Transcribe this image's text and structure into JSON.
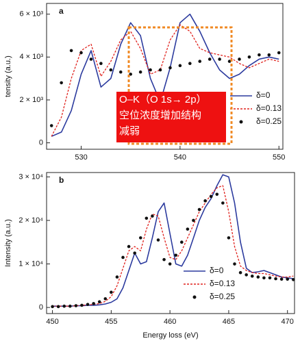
{
  "chart_data": [
    {
      "type": "line",
      "panel": "a",
      "ylabel": "tensity (a.u.)",
      "x": [
        527,
        528,
        529,
        530,
        531,
        532,
        533,
        534,
        535,
        536,
        537,
        538,
        539,
        540,
        541,
        542,
        543,
        544,
        545,
        546,
        547,
        548,
        549,
        550
      ],
      "xlim": [
        526.5,
        550.4
      ],
      "xticks": [
        530,
        540,
        550
      ],
      "ylim": [
        -300,
        6500
      ],
      "yticks": [
        0,
        {
          "value": 2000,
          "label": "2 × 10³"
        },
        {
          "value": 4000,
          "label": "4 × 10³"
        },
        {
          "value": 6000,
          "label": "6 × 10³"
        }
      ],
      "series": [
        {
          "name": "δ=0",
          "color": "#2b3a9e",
          "style": "solid",
          "values": [
            300,
            500,
            1500,
            3200,
            4300,
            2600,
            3000,
            4600,
            5600,
            5000,
            3000,
            1900,
            3500,
            5600,
            6000,
            5200,
            4200,
            3400,
            3000,
            3200,
            3600,
            3900,
            4000,
            3900
          ]
        },
        {
          "name": "δ=0.13",
          "color": "#e0201b",
          "style": "dashed",
          "values": [
            300,
            1200,
            3000,
            4300,
            4600,
            3100,
            3800,
            4800,
            5200,
            4400,
            3200,
            3400,
            4800,
            5500,
            5200,
            4400,
            4200,
            4100,
            4000,
            3700,
            3500,
            3700,
            3900,
            3800
          ]
        },
        {
          "name": "δ=0.25",
          "color": "#111111",
          "style": "dots",
          "values": [
            800,
            2800,
            4300,
            4200,
            3900,
            3700,
            3400,
            3300,
            3200,
            3300,
            3400,
            3400,
            3500,
            3600,
            3700,
            3800,
            3900,
            3900,
            3800,
            3900,
            4000,
            4100,
            4100,
            4200
          ]
        }
      ]
    },
    {
      "type": "line",
      "panel": "b",
      "xlabel": "Energy loss (eV)",
      "ylabel": "Intensity (a.u.)",
      "x": [
        450,
        450.5,
        451,
        451.5,
        452,
        452.5,
        453,
        453.5,
        454,
        454.5,
        455,
        455.5,
        456,
        456.5,
        457,
        457.5,
        458,
        458.5,
        459,
        459.5,
        460,
        460.5,
        461,
        461.5,
        462,
        462.5,
        463,
        463.5,
        464,
        464.5,
        465,
        465.5,
        466,
        466.5,
        467,
        467.5,
        468,
        468.5,
        469,
        469.5,
        470,
        470.5
      ],
      "xlim": [
        449.5,
        470.6
      ],
      "xticks": [
        450,
        455,
        460,
        465,
        470
      ],
      "ylim": [
        -1400,
        31000
      ],
      "yticks": [
        0,
        {
          "value": 10000,
          "label": "1 × 10⁴"
        },
        {
          "value": 20000,
          "label": "2 × 10⁴"
        },
        {
          "value": 30000,
          "label": "3 × 10⁴"
        }
      ],
      "series": [
        {
          "name": "δ=0",
          "color": "#2b3a9e",
          "style": "solid",
          "values": [
            300,
            300,
            300,
            300,
            400,
            400,
            500,
            500,
            600,
            800,
            1200,
            2000,
            4500,
            8500,
            12500,
            10000,
            10500,
            16000,
            22000,
            24000,
            17000,
            10000,
            9500,
            12000,
            16000,
            20000,
            23000,
            25000,
            28000,
            30500,
            30000,
            24000,
            15000,
            9000,
            8000,
            8200,
            8500,
            8000,
            7500,
            7000,
            6800,
            6600
          ]
        },
        {
          "name": "δ=0.13",
          "color": "#e0201b",
          "style": "dashed",
          "values": [
            300,
            300,
            300,
            300,
            400,
            500,
            600,
            700,
            900,
            1400,
            2500,
            5000,
            9000,
            13000,
            14000,
            13000,
            18000,
            21500,
            21000,
            16000,
            11500,
            11000,
            13000,
            16000,
            19000,
            22000,
            24000,
            26000,
            27500,
            28000,
            22000,
            14000,
            9500,
            8500,
            8000,
            7800,
            7800,
            7500,
            7200,
            7000,
            7000,
            7200
          ]
        },
        {
          "name": "δ=0.25",
          "color": "#111111",
          "style": "dots",
          "values": [
            200,
            200,
            300,
            300,
            400,
            500,
            700,
            900,
            1300,
            2000,
            3500,
            7000,
            11500,
            14000,
            12500,
            16000,
            20500,
            21000,
            15500,
            11000,
            10000,
            12000,
            15000,
            18000,
            20000,
            22500,
            24500,
            25500,
            26000,
            24000,
            16000,
            10000,
            8000,
            7500,
            7200,
            7000,
            6800,
            6800,
            6600,
            6500,
            6500,
            6400
          ]
        }
      ]
    }
  ],
  "annotation": {
    "lines": [
      "O–K（O 1s→ 2p）",
      "空位浓度增加结构",
      "减弱"
    ]
  }
}
